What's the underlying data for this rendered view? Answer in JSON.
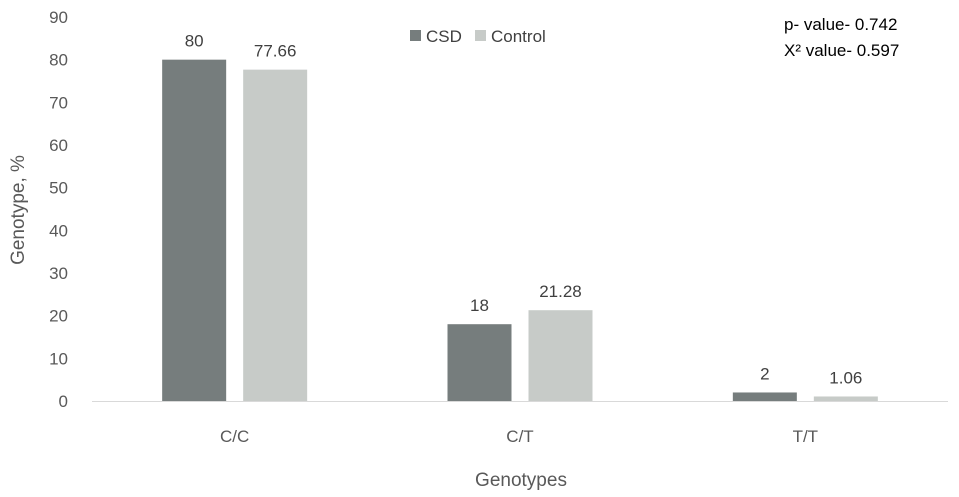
{
  "chart_data": {
    "type": "bar",
    "categories": [
      "C/C",
      "C/T",
      "T/T"
    ],
    "series": [
      {
        "name": "CSD",
        "values": [
          80,
          18,
          2
        ],
        "labels": [
          "80",
          "18",
          "2"
        ],
        "color": "#767d7d"
      },
      {
        "name": "Control",
        "values": [
          77.66,
          21.28,
          1.06
        ],
        "labels": [
          "77.66",
          "21.28",
          "1.06"
        ],
        "color": "#c7cbc8"
      }
    ],
    "xlabel": "Genotypes",
    "ylabel": "Genotype, %",
    "ylim": [
      0,
      90
    ],
    "yticks": [
      0,
      10,
      20,
      30,
      40,
      50,
      60,
      70,
      80,
      90
    ],
    "grid": false,
    "legend_position": "top-center",
    "annotations": [
      "p- value- 0.742",
      "X² value- 0.597"
    ]
  }
}
